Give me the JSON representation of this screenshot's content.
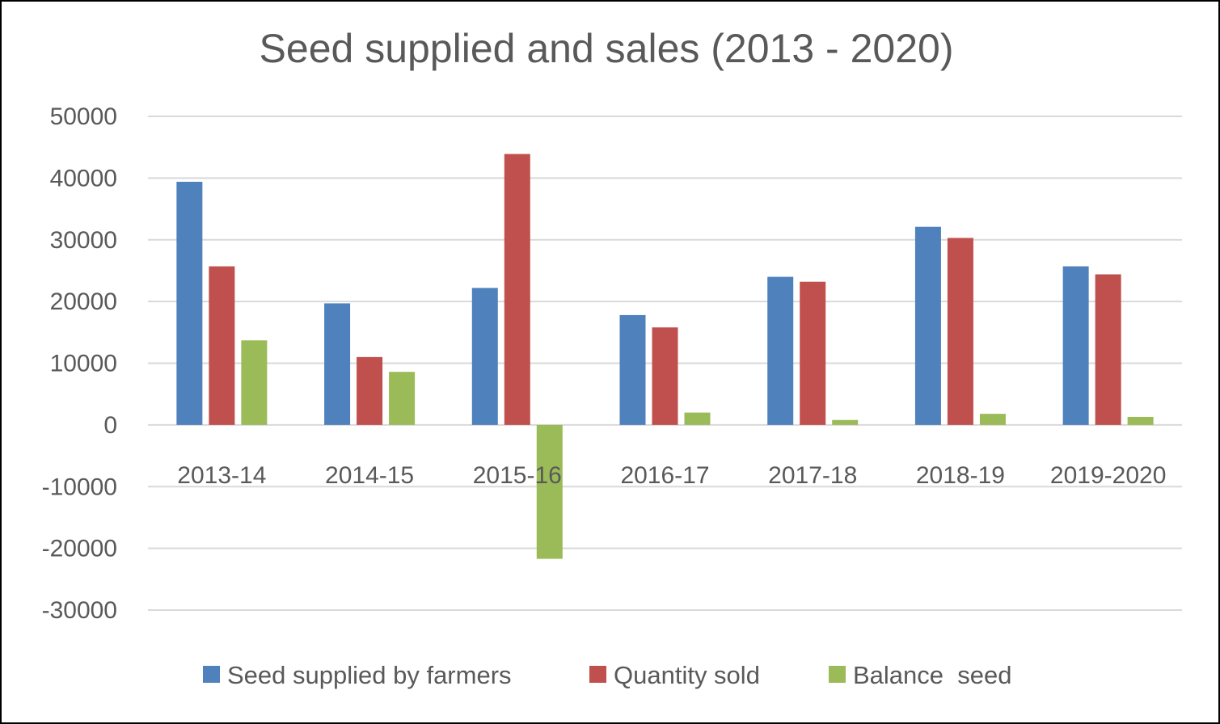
{
  "chart_data": {
    "type": "bar",
    "title": "Seed supplied and sales (2013 - 2020)",
    "categories": [
      "2013-14",
      "2014-15",
      "2015-16",
      "2016-17",
      "2017-18",
      "2018-19",
      "2019-2020"
    ],
    "series": [
      {
        "name": "Seed supplied by farmers",
        "color": "#4F81BD",
        "values": [
          39400,
          19700,
          22200,
          17800,
          24000,
          32100,
          25700
        ]
      },
      {
        "name": "Quantity sold",
        "color": "#C0504D",
        "values": [
          25700,
          11000,
          43900,
          15800,
          23200,
          30300,
          24400
        ]
      },
      {
        "name": "Balance  seed",
        "color": "#9BBB59",
        "values": [
          13700,
          8600,
          -21700,
          2000,
          800,
          1800,
          1300
        ]
      }
    ],
    "yticks": [
      "50000",
      "40000",
      "30000",
      "20000",
      "10000",
      "0",
      "-10000",
      "-20000",
      "-30000"
    ],
    "ylim": [
      -30000,
      50000
    ],
    "grid": true,
    "legend": "bottom"
  }
}
